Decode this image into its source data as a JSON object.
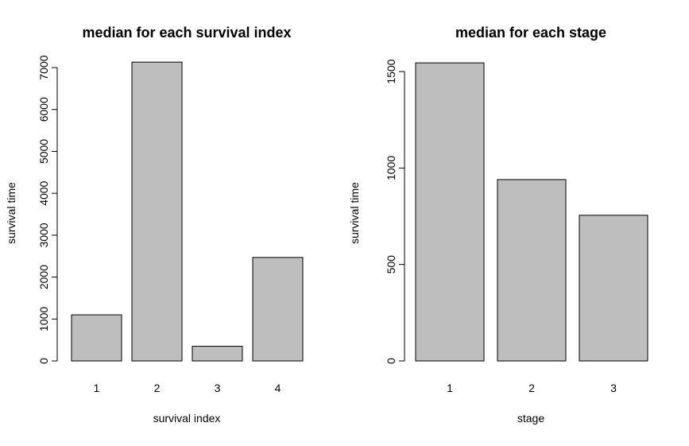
{
  "chart_data": [
    {
      "type": "bar",
      "title": "median for each survival index",
      "xlabel": "survival index",
      "ylabel": "survival time",
      "categories": [
        "1",
        "2",
        "3",
        "4"
      ],
      "values": [
        1100,
        7130,
        350,
        2470
      ],
      "ylim": [
        0,
        7000
      ],
      "yticks": [
        "0",
        "1000",
        "2000",
        "3000",
        "4000",
        "5000",
        "6000",
        "7000"
      ],
      "bar_color": "#bebebe",
      "grid": false,
      "legend": "none"
    },
    {
      "type": "bar",
      "title": "median for each stage",
      "xlabel": "stage",
      "ylabel": "survival time",
      "categories": [
        "1",
        "2",
        "3"
      ],
      "values": [
        1545,
        940,
        755
      ],
      "ylim": [
        0,
        1500
      ],
      "yticks": [
        "0",
        "500",
        "1000",
        "1500"
      ],
      "bar_color": "#bebebe",
      "grid": false,
      "legend": "none"
    }
  ]
}
